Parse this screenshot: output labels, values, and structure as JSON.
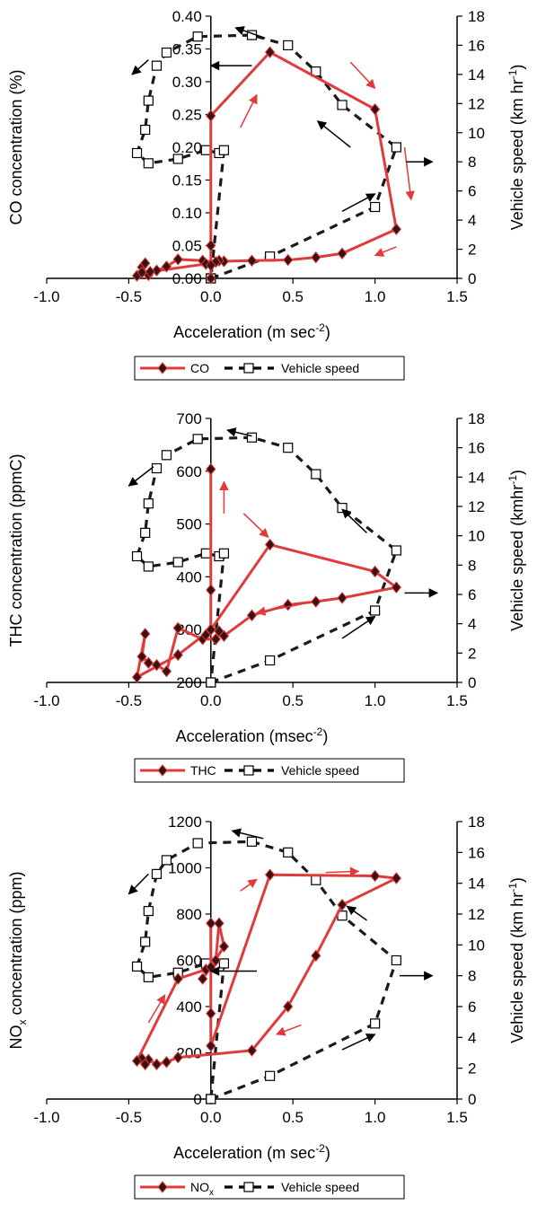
{
  "chart_data": [
    {
      "type": "scatter",
      "xlabel": "Acceleration (m sec",
      "xlabel_sup": "-2",
      "xlabel_tail": ")",
      "ylabel": "CO concentration (%)",
      "y2label": "Vehicle speed (km hr",
      "y2label_sup": "-1",
      "y2label_tail": ")",
      "xlim": [
        -1.0,
        1.5
      ],
      "ylim": [
        0,
        0.4
      ],
      "y2lim": [
        0,
        18
      ],
      "x_ticks": [
        "-1.0",
        "-0.5",
        "0.0",
        "0.5",
        "1.0",
        "1.5"
      ],
      "y_ticks": [
        "0.00",
        "0.05",
        "0.10",
        "0.15",
        "0.20",
        "0.25",
        "0.30",
        "0.35",
        "0.40"
      ],
      "y2_ticks": [
        "0",
        "2",
        "4",
        "6",
        "8",
        "10",
        "12",
        "14",
        "16",
        "18"
      ],
      "legend": {
        "series1": "CO",
        "series2": "Vehicle speed"
      },
      "colors": {
        "series1": "#e03a3a",
        "series2": "#1a1a1a",
        "arrow_red": "#e03a3a",
        "arrow_black": "#000000"
      },
      "series": [
        {
          "name": "CO",
          "axis": "left",
          "points": [
            [
              0.0,
              0.0
            ],
            [
              0.0,
              0.05
            ],
            [
              0.0,
              0.248
            ],
            [
              0.36,
              0.345
            ],
            [
              1.0,
              0.258
            ],
            [
              1.13,
              0.075
            ],
            [
              0.8,
              0.038
            ],
            [
              0.64,
              0.032
            ],
            [
              0.47,
              0.028
            ],
            [
              0.25,
              0.027
            ],
            [
              0.08,
              0.026
            ],
            [
              0.05,
              0.027
            ],
            [
              0.03,
              0.025
            ],
            [
              -0.05,
              0.027
            ],
            [
              -0.2,
              0.029
            ],
            [
              -0.27,
              0.018
            ],
            [
              -0.33,
              0.012
            ],
            [
              -0.38,
              0.005
            ],
            [
              -0.42,
              0.017
            ],
            [
              -0.4,
              0.023
            ],
            [
              -0.45,
              0.004
            ],
            [
              -0.42,
              0.009
            ],
            [
              -0.37,
              0.01
            ],
            [
              -0.03,
              0.022
            ],
            [
              0.0,
              0.02
            ]
          ]
        },
        {
          "name": "Vehicle speed",
          "axis": "right",
          "points": [
            [
              0.0,
              0.0
            ],
            [
              0.36,
              1.5
            ],
            [
              1.0,
              4.9
            ],
            [
              1.13,
              9.0
            ],
            [
              0.8,
              11.9
            ],
            [
              0.64,
              14.2
            ],
            [
              0.47,
              16.0
            ],
            [
              0.25,
              16.7
            ],
            [
              -0.08,
              16.6
            ],
            [
              -0.27,
              15.5
            ],
            [
              -0.33,
              14.6
            ],
            [
              -0.38,
              12.2
            ],
            [
              -0.4,
              10.2
            ],
            [
              -0.45,
              8.6
            ],
            [
              -0.38,
              7.9
            ],
            [
              -0.2,
              8.2
            ],
            [
              -0.03,
              8.8
            ],
            [
              0.05,
              8.6
            ],
            [
              0.08,
              8.8
            ],
            [
              0.0,
              0.0
            ]
          ]
        }
      ],
      "arrows_red": [
        [
          0.18,
          0.23,
          0.28,
          0.28
        ],
        [
          0.85,
          0.33,
          1.0,
          0.29
        ],
        [
          1.18,
          0.2,
          1.22,
          0.12
        ],
        [
          1.13,
          0.048,
          1.0,
          0.035
        ]
      ],
      "arrows_black": [
        [
          1.19,
          8.0,
          1.35,
          8.0
        ],
        [
          0.85,
          9.0,
          0.65,
          10.8
        ],
        [
          0.33,
          16.5,
          0.15,
          17.2
        ],
        [
          -0.38,
          15.0,
          -0.48,
          14.0
        ],
        [
          0.25,
          14.6,
          0.0,
          14.6
        ],
        [
          0.8,
          4.6,
          1.0,
          5.8
        ]
      ]
    },
    {
      "type": "scatter",
      "xlabel": "Acceleration (msec",
      "xlabel_sup": "-2",
      "xlabel_tail": ")",
      "ylabel": "THC concentration (ppmC)",
      "y2label": "Vehicle speed (kmhr",
      "y2label_sup": "-1",
      "y2label_tail": ")",
      "xlim": [
        -1.0,
        1.5
      ],
      "ylim": [
        200,
        700
      ],
      "y2lim": [
        0,
        18
      ],
      "x_ticks": [
        "-1.0",
        "-0.5",
        "0.0",
        "0.5",
        "1.0",
        "1.5"
      ],
      "y_ticks": [
        "200",
        "300",
        "400",
        "500",
        "600",
        "700"
      ],
      "y2_ticks": [
        "0",
        "2",
        "4",
        "6",
        "8",
        "10",
        "12",
        "14",
        "16",
        "18"
      ],
      "legend": {
        "series1": "THC",
        "series2": "Vehicle speed"
      },
      "colors": {
        "series1": "#e03a3a",
        "series2": "#1a1a1a",
        "arrow_red": "#e03a3a",
        "arrow_black": "#000000"
      },
      "series": [
        {
          "name": "THC",
          "axis": "left",
          "points": [
            [
              0.0,
              604
            ],
            [
              0.0,
              375
            ],
            [
              0.0,
              300
            ],
            [
              0.36,
              461
            ],
            [
              1.0,
              410
            ],
            [
              1.13,
              380
            ],
            [
              0.8,
              360
            ],
            [
              0.64,
              353
            ],
            [
              0.47,
              347
            ],
            [
              0.25,
              327
            ],
            [
              0.08,
              288
            ],
            [
              0.05,
              297
            ],
            [
              0.03,
              282
            ],
            [
              -0.05,
              282
            ],
            [
              -0.2,
              303
            ],
            [
              -0.27,
              221
            ],
            [
              -0.33,
              233
            ],
            [
              -0.38,
              237
            ],
            [
              -0.42,
              249
            ],
            [
              -0.4,
              292
            ],
            [
              -0.45,
              210
            ],
            [
              -0.2,
              252
            ],
            [
              0.0,
              300
            ],
            [
              -0.03,
              290
            ]
          ]
        },
        {
          "name": "Vehicle speed",
          "axis": "right",
          "points": [
            [
              0.0,
              0.0
            ],
            [
              0.36,
              1.5
            ],
            [
              1.0,
              4.9
            ],
            [
              1.13,
              9.0
            ],
            [
              0.8,
              11.9
            ],
            [
              0.64,
              14.2
            ],
            [
              0.47,
              16.0
            ],
            [
              0.25,
              16.7
            ],
            [
              -0.08,
              16.6
            ],
            [
              -0.27,
              15.5
            ],
            [
              -0.33,
              14.6
            ],
            [
              -0.38,
              12.2
            ],
            [
              -0.4,
              10.2
            ],
            [
              -0.45,
              8.6
            ],
            [
              -0.38,
              7.9
            ],
            [
              -0.2,
              8.2
            ],
            [
              -0.03,
              8.8
            ],
            [
              0.05,
              8.6
            ],
            [
              0.08,
              8.8
            ],
            [
              0.0,
              0.0
            ]
          ]
        }
      ],
      "arrows_red": [
        [
          0.08,
          520,
          0.08,
          580
        ],
        [
          0.2,
          520,
          0.35,
          475
        ],
        [
          0.55,
          348,
          0.28,
          332
        ]
      ],
      "arrows_black": [
        [
          1.18,
          6.1,
          1.38,
          6.1
        ],
        [
          0.95,
          10.2,
          0.8,
          11.8
        ],
        [
          -0.35,
          14.7,
          -0.5,
          13.4
        ],
        [
          0.25,
          16.8,
          0.1,
          17.2
        ],
        [
          0.8,
          3.0,
          1.0,
          4.5
        ]
      ]
    },
    {
      "type": "scatter",
      "xlabel": "Acceleration (m sec",
      "xlabel_sup": "-2",
      "xlabel_tail": ")",
      "ylabel": "NO",
      "ylabel_sub": "x",
      "ylabel_tail": " concentration (ppm)",
      "y2label": "Vehicle speed (km hr",
      "y2label_sup": "-1",
      "y2label_tail": ")",
      "xlim": [
        -1.0,
        1.5
      ],
      "ylim": [
        0,
        1200
      ],
      "y2lim": [
        0,
        18
      ],
      "x_ticks": [
        "-1.0",
        "-0.5",
        "0.0",
        "0.5",
        "1.0",
        "1.5"
      ],
      "y_ticks": [
        "0",
        "200",
        "400",
        "600",
        "800",
        "1000",
        "1200"
      ],
      "y2_ticks": [
        "0",
        "2",
        "4",
        "6",
        "8",
        "10",
        "12",
        "14",
        "16",
        "18"
      ],
      "legend": {
        "series1": "NO",
        "series1_sub": "x",
        "series2": "Vehicle speed"
      },
      "colors": {
        "series1": "#e03a3a",
        "series2": "#1a1a1a",
        "arrow_red": "#e03a3a",
        "arrow_black": "#000000"
      },
      "series": [
        {
          "name": "NOx",
          "axis": "left",
          "points": [
            [
              0.0,
              760
            ],
            [
              0.0,
              370
            ],
            [
              0.0,
              230
            ],
            [
              0.36,
              970
            ],
            [
              1.0,
              965
            ],
            [
              1.13,
              955
            ],
            [
              0.8,
              840
            ],
            [
              0.64,
              620
            ],
            [
              0.47,
              400
            ],
            [
              0.25,
              210
            ],
            [
              -0.2,
              180
            ],
            [
              -0.27,
              160
            ],
            [
              -0.33,
              150
            ],
            [
              -0.38,
              170
            ],
            [
              -0.42,
              175
            ],
            [
              -0.4,
              150
            ],
            [
              -0.45,
              165
            ],
            [
              -0.2,
              520
            ],
            [
              -0.03,
              560
            ],
            [
              0.0,
              570
            ],
            [
              0.08,
              660
            ],
            [
              0.05,
              760
            ],
            [
              0.03,
              600
            ],
            [
              -0.05,
              520
            ]
          ]
        },
        {
          "name": "Vehicle speed",
          "axis": "right",
          "points": [
            [
              0.0,
              0.0
            ],
            [
              0.36,
              1.5
            ],
            [
              1.0,
              4.9
            ],
            [
              1.13,
              9.0
            ],
            [
              0.8,
              11.9
            ],
            [
              0.64,
              14.2
            ],
            [
              0.47,
              16.0
            ],
            [
              0.25,
              16.7
            ],
            [
              -0.08,
              16.6
            ],
            [
              -0.27,
              15.5
            ],
            [
              -0.33,
              14.6
            ],
            [
              -0.38,
              12.2
            ],
            [
              -0.4,
              10.2
            ],
            [
              -0.45,
              8.6
            ],
            [
              -0.38,
              7.9
            ],
            [
              -0.2,
              8.2
            ],
            [
              -0.03,
              8.8
            ],
            [
              0.05,
              8.6
            ],
            [
              0.08,
              8.8
            ],
            [
              0.0,
              0.0
            ]
          ]
        }
      ],
      "arrows_red": [
        [
          -0.38,
          330,
          -0.28,
          450
        ],
        [
          0.18,
          900,
          0.28,
          950
        ],
        [
          0.7,
          980,
          0.9,
          985
        ],
        [
          0.55,
          320,
          0.4,
          280
        ]
      ],
      "arrows_black": [
        [
          1.15,
          8.0,
          1.35,
          8.0
        ],
        [
          0.95,
          11.6,
          0.83,
          12.5
        ],
        [
          0.32,
          16.9,
          0.13,
          17.4
        ],
        [
          -0.38,
          14.6,
          -0.5,
          13.3
        ],
        [
          0.28,
          8.3,
          0.0,
          8.3
        ],
        [
          0.8,
          3.2,
          1.0,
          4.2
        ]
      ]
    }
  ]
}
